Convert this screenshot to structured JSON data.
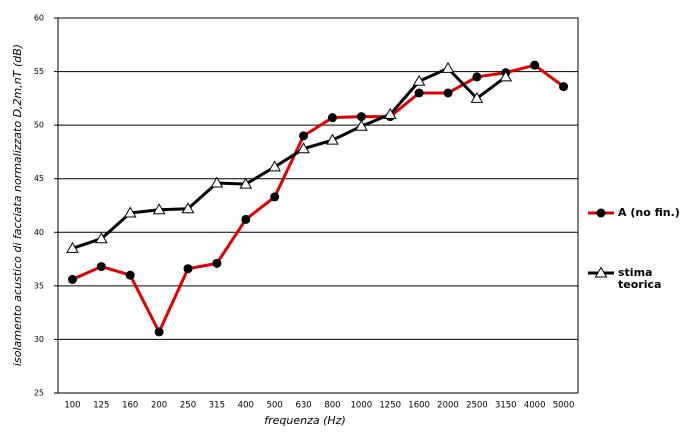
{
  "chart_data": {
    "type": "line",
    "x_label": "frequenza (Hz)",
    "y_label": "isolamento acustico di facciata normalizzato D,2m,nT (dB)",
    "categories": [
      "100",
      "125",
      "160",
      "200",
      "250",
      "315",
      "400",
      "500",
      "630",
      "800",
      "1000",
      "1250",
      "1600",
      "2000",
      "2500",
      "3150",
      "4000",
      "5000"
    ],
    "series": [
      {
        "name": "A (no fin.)",
        "color": "#e00000",
        "marker": "circle",
        "values": [
          35.6,
          36.8,
          36.0,
          30.7,
          36.6,
          37.1,
          41.2,
          43.3,
          49.0,
          50.7,
          50.8,
          50.8,
          53.0,
          53.0,
          54.5,
          54.9,
          55.6,
          53.6
        ]
      },
      {
        "name": "stima teorica",
        "color": "#000000",
        "marker": "triangle",
        "values": [
          38.5,
          39.4,
          41.8,
          42.1,
          42.2,
          44.6,
          44.5,
          46.1,
          47.8,
          48.6,
          49.9,
          51.0,
          54.1,
          55.3,
          52.5,
          54.5,
          null,
          null
        ]
      }
    ],
    "ylim": [
      25,
      60
    ],
    "yticks": [
      25,
      30,
      35,
      40,
      45,
      50,
      55,
      60
    ],
    "grid": true
  }
}
